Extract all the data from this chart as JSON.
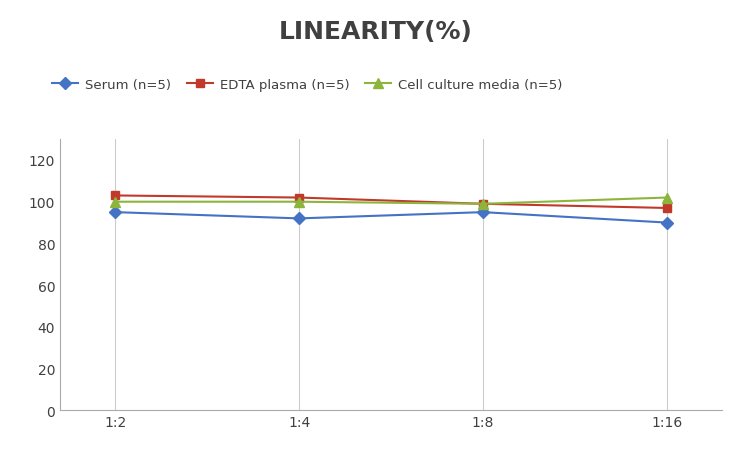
{
  "title": "LINEARITY(%)",
  "x_labels": [
    "1:2",
    "1:4",
    "1:8",
    "1:16"
  ],
  "series": [
    {
      "label": "Serum (n=5)",
      "values": [
        95,
        92,
        95,
        90
      ],
      "color": "#4472C4",
      "marker": "D",
      "marker_size": 6,
      "linestyle": "-"
    },
    {
      "label": "EDTA plasma (n=5)",
      "values": [
        103,
        102,
        99,
        97
      ],
      "color": "#C0392B",
      "marker": "s",
      "marker_size": 6,
      "linestyle": "-"
    },
    {
      "label": "Cell culture media (n=5)",
      "values": [
        100,
        100,
        99,
        102
      ],
      "color": "#8DB53C",
      "marker": "^",
      "marker_size": 7,
      "linestyle": "-"
    }
  ],
  "ylim": [
    0,
    130
  ],
  "yticks": [
    0,
    20,
    40,
    60,
    80,
    100,
    120
  ],
  "title_fontsize": 18,
  "legend_fontsize": 9.5,
  "tick_fontsize": 10,
  "background_color": "#ffffff",
  "grid_color": "#cccccc",
  "title_color": "#404040"
}
